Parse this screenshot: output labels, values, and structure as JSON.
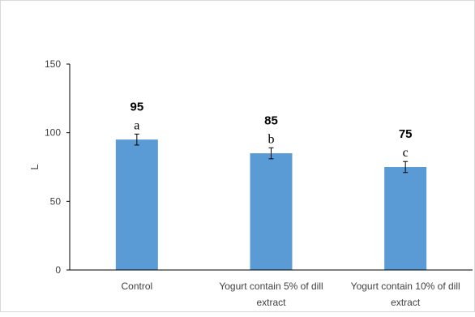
{
  "chart_data": {
    "type": "bar",
    "title": "",
    "xlabel": "",
    "ylabel": "L",
    "ylim": [
      0,
      150
    ],
    "yticks": [
      0,
      50,
      100,
      150
    ],
    "grid": false,
    "legend": "none",
    "bar_color": "#5b9bd5",
    "categories": [
      [
        "Control"
      ],
      [
        "Yogurt contain 5% of dill",
        "extract"
      ],
      [
        "Yogurt contain 10% of dill",
        "extract"
      ]
    ],
    "series": [
      {
        "values": [
          95,
          85,
          75
        ],
        "error": [
          4,
          4,
          4
        ],
        "value_labels": [
          "95",
          "85",
          "75"
        ],
        "letters": [
          "a",
          "b",
          "c"
        ]
      }
    ]
  }
}
